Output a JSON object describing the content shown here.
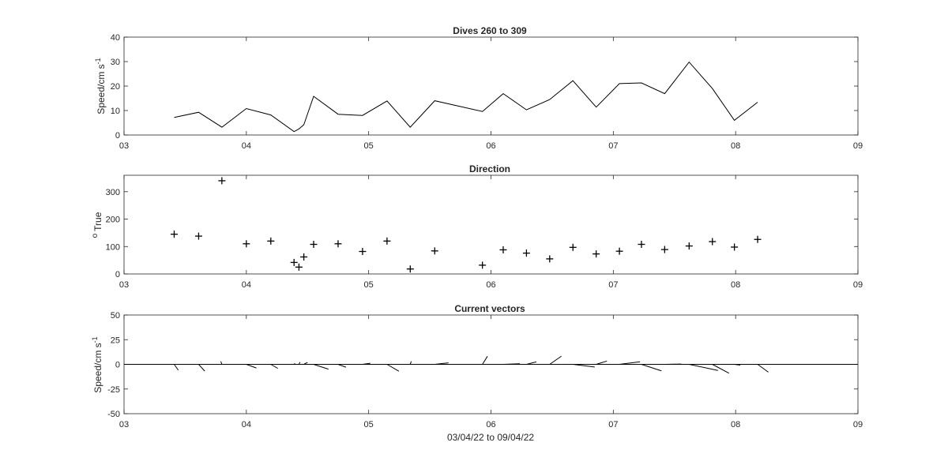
{
  "chart_data": [
    {
      "type": "line",
      "title": "Dives 260 to 309",
      "xlabel": "",
      "ylabel": "Speed/cm s",
      "ylabel_superscript": "-1",
      "xlim": [
        3,
        9
      ],
      "ylim": [
        0,
        40
      ],
      "xticks": [
        "03",
        "04",
        "05",
        "06",
        "07",
        "08",
        "09"
      ],
      "yticks": [
        "0",
        "10",
        "20",
        "30",
        "40"
      ],
      "x": [
        3.41,
        3.61,
        3.8,
        4.0,
        4.2,
        4.39,
        4.43,
        4.47,
        4.55,
        4.75,
        4.95,
        5.15,
        5.34,
        5.54,
        5.93,
        6.1,
        6.29,
        6.48,
        6.67,
        6.86,
        7.05,
        7.23,
        7.42,
        7.62,
        7.81,
        7.99,
        8.18
      ],
      "values": [
        7.2,
        9.3,
        3.2,
        10.8,
        8.2,
        1.4,
        2.5,
        4.2,
        15.8,
        8.5,
        8.0,
        13.9,
        3.2,
        14.0,
        9.6,
        16.9,
        10.3,
        14.5,
        22.2,
        11.4,
        21.0,
        21.3,
        16.9,
        29.8,
        19.0,
        6.0,
        13.4
      ],
      "grid": false
    },
    {
      "type": "scatter",
      "title": "Direction",
      "xlabel": "",
      "ylabel": "True",
      "ylabel_prefix": "o",
      "xlim": [
        3,
        9
      ],
      "ylim": [
        0,
        360
      ],
      "xticks": [
        "03",
        "04",
        "05",
        "06",
        "07",
        "08",
        "09"
      ],
      "yticks": [
        "0",
        "100",
        "200",
        "300"
      ],
      "x": [
        3.41,
        3.61,
        3.8,
        4.0,
        4.2,
        4.39,
        4.43,
        4.47,
        4.55,
        4.75,
        4.95,
        5.15,
        5.34,
        5.54,
        5.93,
        6.1,
        6.29,
        6.48,
        6.67,
        6.86,
        7.05,
        7.23,
        7.42,
        7.62,
        7.81,
        7.99,
        8.18
      ],
      "values": [
        145,
        138,
        340,
        110,
        120,
        42,
        25,
        62,
        108,
        110,
        82,
        120,
        18,
        84,
        32,
        88,
        76,
        55,
        97,
        73,
        83,
        108,
        89,
        102,
        118,
        98,
        126
      ],
      "marker": "+",
      "grid": false
    },
    {
      "type": "quiver",
      "title": "Current vectors",
      "xlabel": "03/04/22 to 09/04/22",
      "ylabel": "Speed/cm s",
      "ylabel_superscript": "-1",
      "xlim": [
        3,
        9
      ],
      "ylim": [
        -50,
        50
      ],
      "xticks": [
        "03",
        "04",
        "05",
        "06",
        "07",
        "08",
        "09"
      ],
      "yticks": [
        "-50",
        "-25",
        "0",
        "25",
        "50"
      ],
      "x": [
        3.41,
        3.61,
        3.8,
        4.0,
        4.2,
        4.39,
        4.43,
        4.47,
        4.55,
        4.75,
        4.95,
        5.15,
        5.34,
        5.54,
        5.93,
        6.1,
        6.29,
        6.48,
        6.67,
        6.86,
        7.05,
        7.23,
        7.42,
        7.62,
        7.81,
        7.99,
        8.18
      ],
      "speed": [
        7.2,
        9.3,
        3.2,
        10.8,
        8.2,
        1.4,
        2.5,
        4.2,
        15.8,
        8.5,
        8.0,
        13.9,
        3.2,
        14.0,
        9.6,
        16.9,
        10.3,
        14.5,
        22.2,
        11.4,
        21.0,
        21.3,
        16.9,
        29.8,
        19.0,
        6.0,
        13.4
      ],
      "direction": [
        145,
        138,
        340,
        110,
        120,
        42,
        25,
        62,
        108,
        110,
        82,
        120,
        18,
        84,
        32,
        88,
        76,
        55,
        97,
        73,
        83,
        108,
        89,
        102,
        118,
        98,
        126
      ],
      "grid": false
    }
  ]
}
